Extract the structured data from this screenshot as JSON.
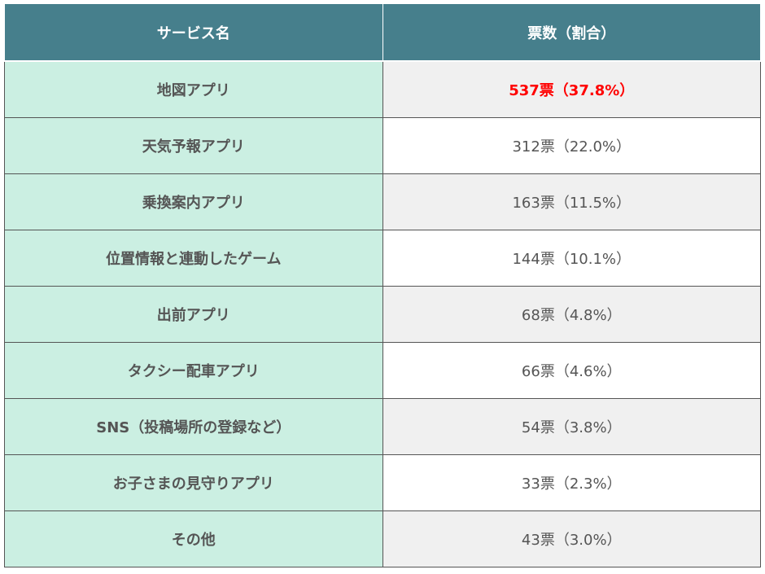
{
  "headers": [
    "サービス名",
    "票数（割合）"
  ],
  "highlight_color": "#ff0000",
  "rows": [
    {
      "name": "地図アプリ",
      "value": "537票（37.8%）"
    },
    {
      "name": "天気予報アプリ",
      "value": "312票（22.0%）"
    },
    {
      "name": "乗換案内アプリ",
      "value": "163票（11.5%）"
    },
    {
      "name": "位置情報と連動したゲーム",
      "value": "144票（10.1%）"
    },
    {
      "name": "出前アプリ",
      "value": "68票（4.8%）"
    },
    {
      "name": "タクシー配車アプリ",
      "value": "66票（4.6%）"
    },
    {
      "name": "SNS（投稿場所の登録など）",
      "value": "54票（3.8%）"
    },
    {
      "name": "お子さまの見守りアプリ",
      "value": "33票（2.3%）"
    },
    {
      "name": "その他",
      "value": "43票（3.0%）"
    }
  ]
}
